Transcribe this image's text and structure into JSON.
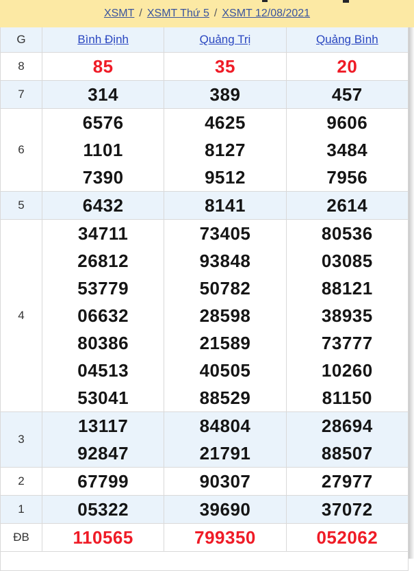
{
  "colors": {
    "band_bg": "#fce9a4",
    "zebra_bg": "#eaf3fb",
    "border": "#d9d9d9",
    "red_number": "#ef1b26",
    "breadcrumb_link": "#3a549d",
    "header_link": "#2946c0"
  },
  "breadcrumb": {
    "separator": "/",
    "items": [
      {
        "label": "XSMT"
      },
      {
        "label": "XSMT Thứ 5"
      },
      {
        "label": "XSMT 12/08/2021"
      }
    ]
  },
  "table": {
    "corner_label": "G",
    "columns": [
      {
        "label": "Bình Định"
      },
      {
        "label": "Quảng Trị"
      },
      {
        "label": "Quảng Bình"
      }
    ],
    "rows": [
      {
        "prize": "8",
        "color": "red",
        "zebra": false,
        "lines": [
          [
            "85",
            "35",
            "20"
          ]
        ]
      },
      {
        "prize": "7",
        "color": "black",
        "zebra": true,
        "lines": [
          [
            "314",
            "389",
            "457"
          ]
        ]
      },
      {
        "prize": "6",
        "color": "black",
        "zebra": false,
        "lines": [
          [
            "6576",
            "4625",
            "9606"
          ],
          [
            "1101",
            "8127",
            "3484"
          ],
          [
            "7390",
            "9512",
            "7956"
          ]
        ]
      },
      {
        "prize": "5",
        "color": "black",
        "zebra": true,
        "lines": [
          [
            "6432",
            "8141",
            "2614"
          ]
        ]
      },
      {
        "prize": "4",
        "color": "black",
        "zebra": false,
        "lines": [
          [
            "34711",
            "73405",
            "80536"
          ],
          [
            "26812",
            "93848",
            "03085"
          ],
          [
            "53779",
            "50782",
            "88121"
          ],
          [
            "06632",
            "28598",
            "38935"
          ],
          [
            "80386",
            "21589",
            "73777"
          ],
          [
            "04513",
            "40505",
            "10260"
          ],
          [
            "53041",
            "88529",
            "81150"
          ]
        ]
      },
      {
        "prize": "3",
        "color": "black",
        "zebra": true,
        "lines": [
          [
            "13117",
            "84804",
            "28694"
          ],
          [
            "92847",
            "21791",
            "88507"
          ]
        ]
      },
      {
        "prize": "2",
        "color": "black",
        "zebra": false,
        "lines": [
          [
            "67799",
            "90307",
            "27977"
          ]
        ]
      },
      {
        "prize": "1",
        "color": "black",
        "zebra": true,
        "lines": [
          [
            "05322",
            "39690",
            "37072"
          ]
        ]
      },
      {
        "prize": "ĐB",
        "color": "red",
        "zebra": false,
        "lines": [
          [
            "110565",
            "799350",
            "052062"
          ]
        ]
      }
    ]
  }
}
